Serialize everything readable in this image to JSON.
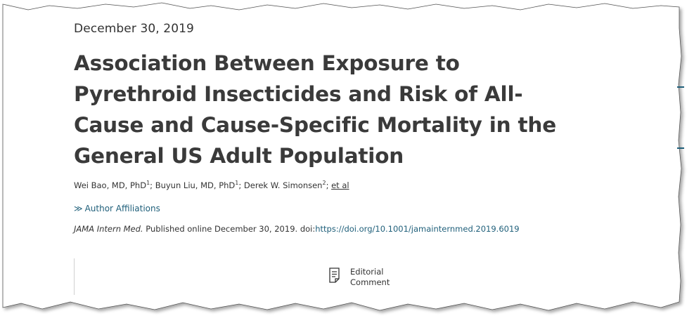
{
  "article": {
    "date": "December 30, 2019",
    "title": "Association Between Exposure to Pyrethroid Insecticides and Risk of All-Cause and Cause-Specific Mortality in the General US Adult Population",
    "authors": [
      {
        "name": "Wei Bao, MD, PhD",
        "sup": "1"
      },
      {
        "name": "Buyun Liu, MD, PhD",
        "sup": "1"
      },
      {
        "name": "Derek W. Simonsen",
        "sup": "2"
      }
    ],
    "author_separator": "; ",
    "et_al": "et al",
    "affiliations_link": "Author Affiliations",
    "citation": {
      "journal": "JAMA Intern Med.",
      "published": " Published online December 30, 2019. doi:",
      "doi_url": "https://doi.org/10.1001/jamainternmed.2019.6019"
    },
    "editorial": {
      "icon": "document-icon",
      "line1": "Editorial",
      "line2": "Comment"
    }
  },
  "colors": {
    "link": "#1f5f7a",
    "text": "#333333",
    "title": "#3a3a3a"
  }
}
